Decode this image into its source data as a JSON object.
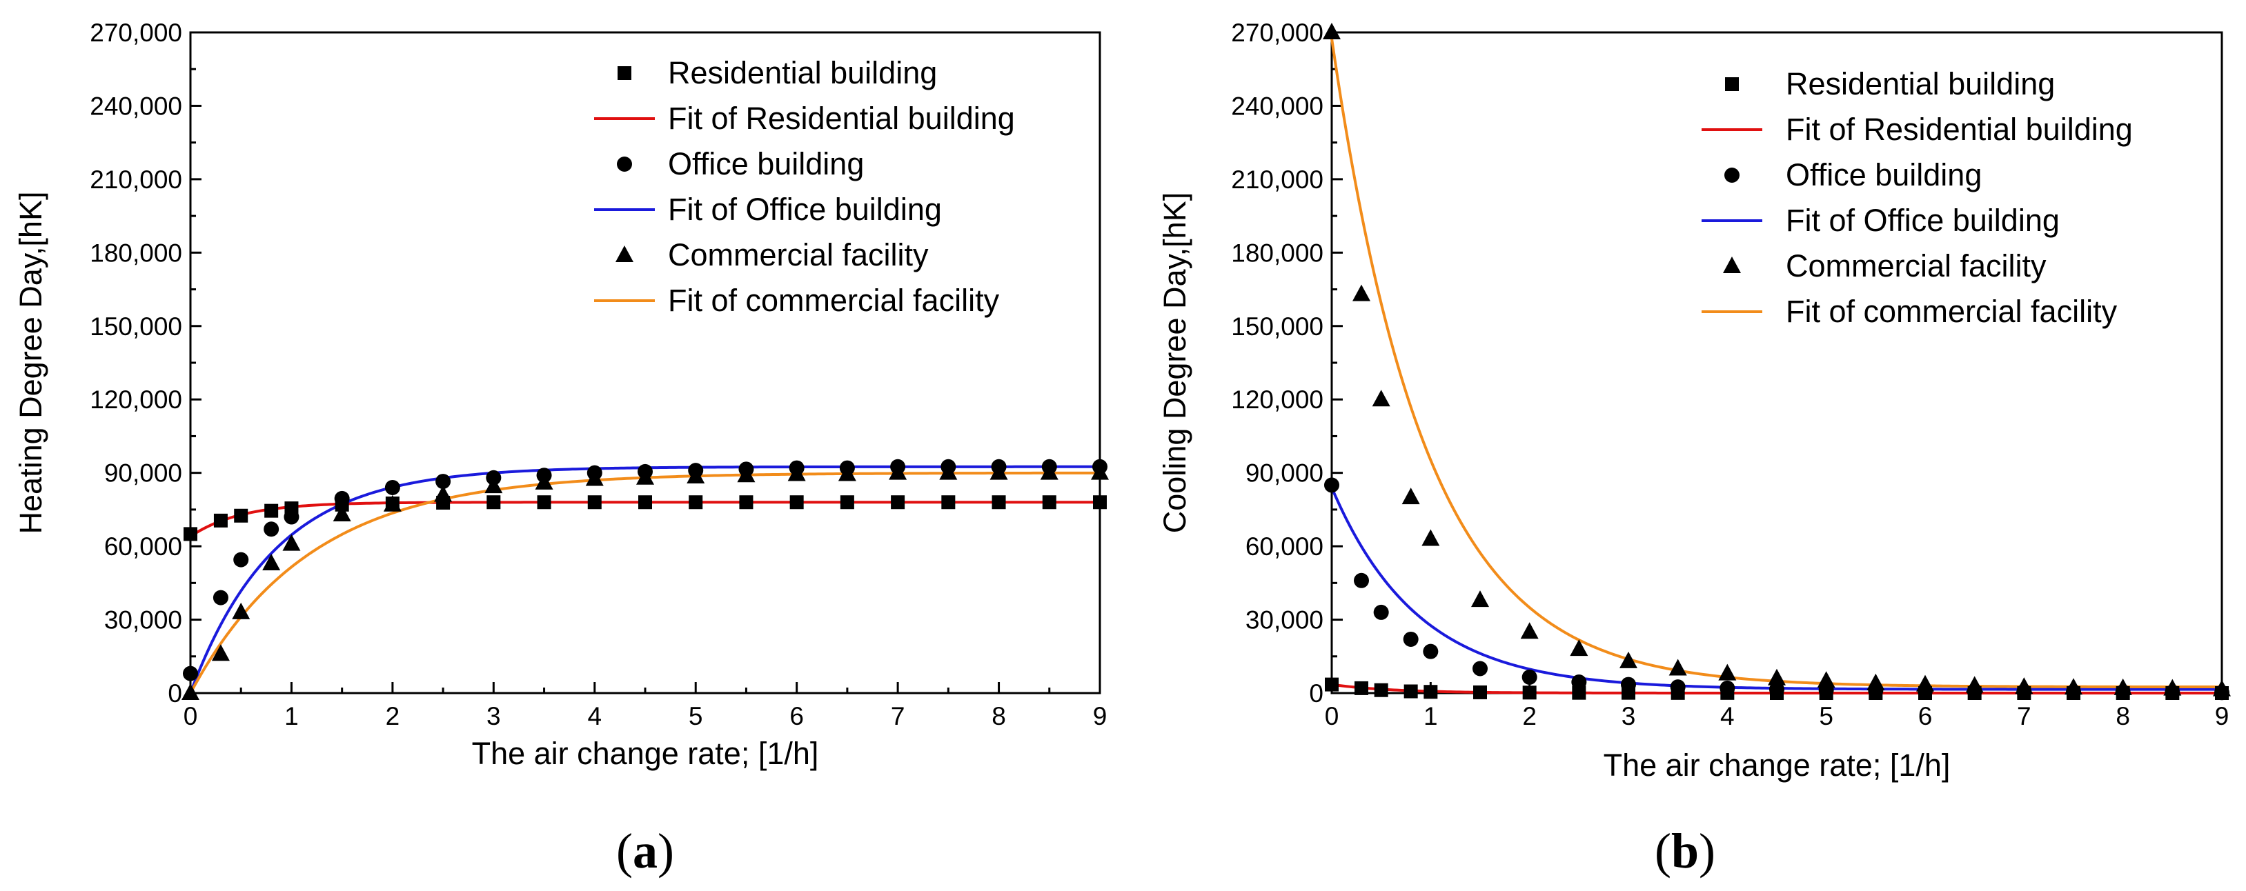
{
  "chart_data": [
    {
      "type": "scatter",
      "panel_label": "a",
      "xlabel": "The air change rate; [1/h]",
      "ylabel": "Heating Degree Day,[hK]",
      "xlim": [
        0,
        9
      ],
      "ylim": [
        0,
        270000
      ],
      "xticks": [
        "0",
        "1",
        "2",
        "3",
        "4",
        "5",
        "6",
        "7",
        "8",
        "9"
      ],
      "yticks": [
        "0",
        "30,000",
        "60,000",
        "90,000",
        "120,000",
        "150,000",
        "180,000",
        "210,000",
        "240,000",
        "270,000"
      ],
      "legend_position": "top-right",
      "x": [
        0,
        0.3,
        0.5,
        0.8,
        1,
        1.5,
        2,
        2.5,
        3,
        3.5,
        4,
        4.5,
        5,
        5.5,
        6,
        6.5,
        7,
        7.5,
        8,
        8.5,
        9
      ],
      "series": [
        {
          "name": "Residential building",
          "kind": "points",
          "marker": "square",
          "values": [
            65000,
            70500,
            72500,
            74500,
            75500,
            77000,
            77500,
            77800,
            78000,
            78000,
            78000,
            78000,
            78000,
            78000,
            78000,
            78000,
            78000,
            78000,
            78000,
            78000,
            78000
          ]
        },
        {
          "name": "Fit of Residential building",
          "kind": "fit",
          "color": "#e01010",
          "model": {
            "asymptote": 78000,
            "start": 64000,
            "rate": 2.0
          }
        },
        {
          "name": "Office building",
          "kind": "points",
          "marker": "circle",
          "values": [
            8000,
            39000,
            54500,
            67000,
            72000,
            79500,
            84000,
            86500,
            88000,
            89000,
            90000,
            90500,
            91000,
            91500,
            92000,
            92000,
            92500,
            92500,
            92500,
            92500,
            92500
          ]
        },
        {
          "name": "Fit of Office building",
          "kind": "fit",
          "color": "#1a1adc",
          "model": {
            "asymptote": 92500,
            "start": 0,
            "rate": 1.2
          }
        },
        {
          "name": "Commercial facility",
          "kind": "points",
          "marker": "triangle",
          "values": [
            0,
            16000,
            33000,
            53000,
            61000,
            73000,
            77000,
            81000,
            84500,
            86000,
            87500,
            88000,
            88500,
            89000,
            89500,
            89500,
            90000,
            90000,
            90000,
            90000,
            90000
          ]
        },
        {
          "name": "Fit of commercial facility",
          "kind": "fit",
          "color": "#f28c1a",
          "model": {
            "asymptote": 90000,
            "start": 0,
            "rate": 0.85
          }
        }
      ]
    },
    {
      "type": "scatter",
      "panel_label": "b",
      "xlabel": "The air change rate; [1/h]",
      "ylabel": "Cooling Degree Day,[hK]",
      "xlim": [
        0,
        9
      ],
      "ylim": [
        0,
        270000
      ],
      "xticks": [
        "0",
        "1",
        "2",
        "3",
        "4",
        "5",
        "6",
        "7",
        "8",
        "9"
      ],
      "yticks": [
        "0",
        "30,000",
        "60,000",
        "90,000",
        "120,000",
        "150,000",
        "180,000",
        "210,000",
        "240,000",
        "270,000"
      ],
      "legend_position": "top-right",
      "x": [
        0,
        0.3,
        0.5,
        0.8,
        1,
        1.5,
        2,
        2.5,
        3,
        3.5,
        4,
        4.5,
        5,
        5.5,
        6,
        6.5,
        7,
        7.5,
        8,
        8.5,
        9
      ],
      "series": [
        {
          "name": "Residential building",
          "kind": "points",
          "marker": "square",
          "values": [
            3500,
            2000,
            1200,
            700,
            500,
            300,
            200,
            100,
            100,
            50,
            50,
            0,
            0,
            0,
            0,
            0,
            0,
            0,
            0,
            0,
            0
          ]
        },
        {
          "name": "Fit of Residential building",
          "kind": "fit",
          "color": "#e01010",
          "model": {
            "asymptote": 0,
            "start": 3500,
            "rate": 1.6
          }
        },
        {
          "name": "Office building",
          "kind": "points",
          "marker": "circle",
          "values": [
            85000,
            46000,
            33000,
            22000,
            17000,
            10000,
            6500,
            4500,
            3500,
            2500,
            2000,
            1500,
            1200,
            1000,
            800,
            700,
            600,
            500,
            400,
            300,
            200
          ]
        },
        {
          "name": "Fit of Office building",
          "kind": "fit",
          "color": "#1a1adc",
          "model": {
            "asymptote": 1500,
            "start": 84000,
            "rate": 1.15
          }
        },
        {
          "name": "Commercial facility",
          "kind": "points",
          "marker": "triangle",
          "values": [
            270000,
            163000,
            120000,
            80000,
            63000,
            38000,
            25000,
            18000,
            13000,
            10000,
            8000,
            6000,
            5000,
            4000,
            3500,
            3000,
            2500,
            2200,
            2000,
            1800,
            1500
          ]
        },
        {
          "name": "Fit of commercial facility",
          "kind": "fit",
          "color": "#f28c1a",
          "model": {
            "asymptote": 2500,
            "start": 267500,
            "rate": 1.05
          }
        }
      ]
    }
  ]
}
